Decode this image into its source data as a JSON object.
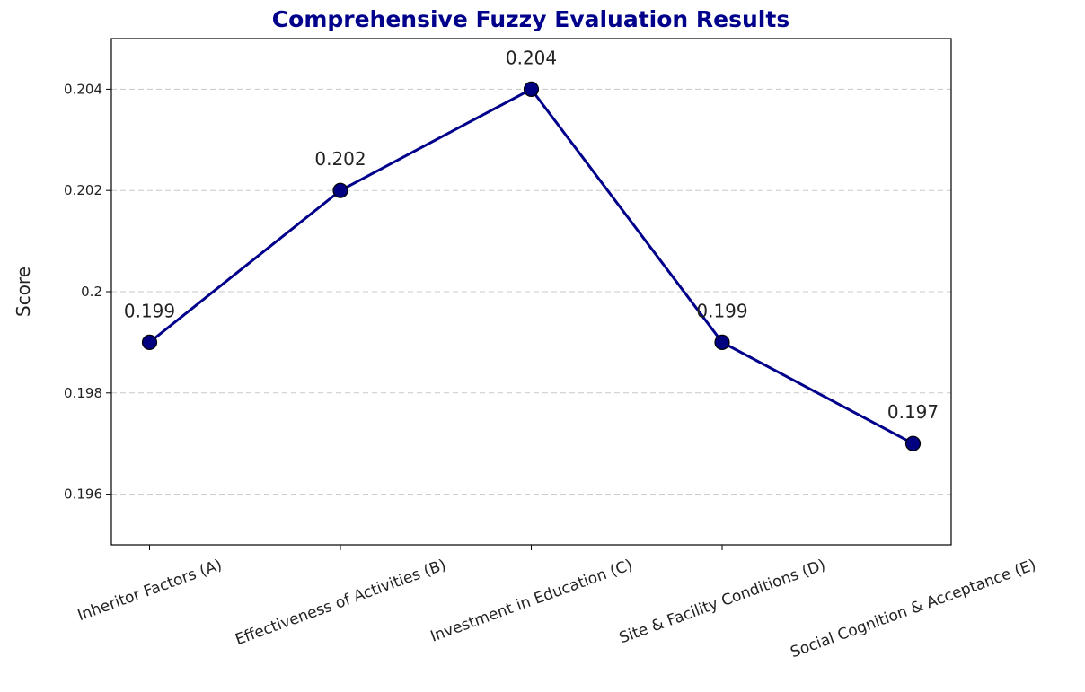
{
  "chart_data": {
    "type": "line",
    "title": "Comprehensive Fuzzy Evaluation Results",
    "ylabel": "Score",
    "categories": [
      "Inheritor Factors (A)",
      "Effectiveness of Activities (B)",
      "Investment in Education (C)",
      "Site & Facility Conditions (D)",
      "Social Cognition & Acceptance (E)"
    ],
    "series": [
      {
        "color": "#00008b",
        "marker_color": "#000080",
        "values": [
          0.199,
          0.202,
          0.204,
          0.199,
          0.197
        ]
      }
    ],
    "ylim": [
      0.195,
      0.205
    ],
    "yticks": [
      0.196,
      0.198,
      0.2,
      0.202,
      0.204
    ],
    "grid": true
  }
}
